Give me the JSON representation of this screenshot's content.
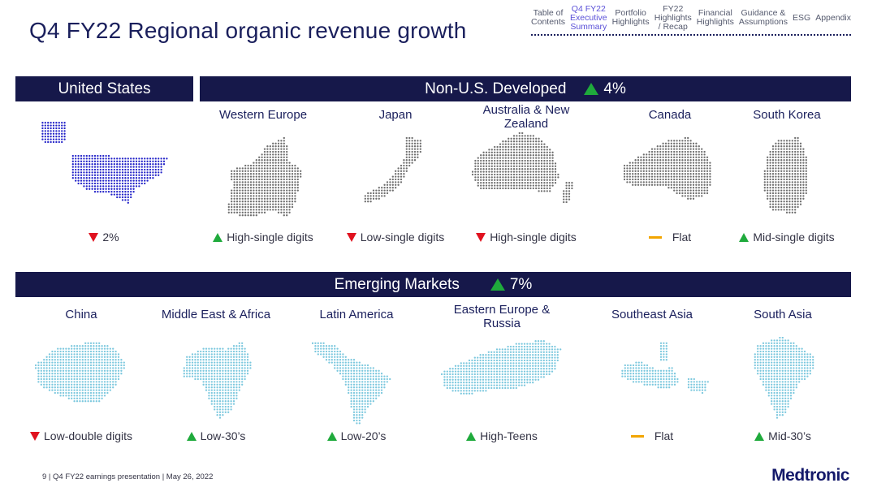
{
  "title": "Q4 FY22 Regional organic revenue growth",
  "nav": [
    {
      "label": "Table of\nContents",
      "active": false
    },
    {
      "label": "Q4 FY22\nExecutive\nSummary",
      "active": true
    },
    {
      "label": "Portfolio\nHighlights",
      "active": false
    },
    {
      "label": "FY22\nHighlights\n/ Recap",
      "active": false
    },
    {
      "label": "Financial\nHighlights",
      "active": false
    },
    {
      "label": "Guidance &\nAssumptions",
      "active": false
    },
    {
      "label": "ESG",
      "active": false
    },
    {
      "label": "Appendix",
      "active": false
    }
  ],
  "us": {
    "title": "United States",
    "status": "2%",
    "trend": "down"
  },
  "developed": {
    "title": "Non-U.S. Developed",
    "pct": "4%",
    "trend": "up",
    "regions": [
      {
        "name": "Western Europe",
        "status": "High-single digits",
        "trend": "up"
      },
      {
        "name": "Japan",
        "status": "Low-single digits",
        "trend": "down"
      },
      {
        "name": "Australia & New\nZealand",
        "status": "High-single digits",
        "trend": "down"
      },
      {
        "name": "Canada",
        "status": "Flat",
        "trend": "flat"
      },
      {
        "name": "South Korea",
        "status": "Mid-single digits",
        "trend": "up"
      }
    ]
  },
  "emerging": {
    "title": "Emerging Markets",
    "pct": "7%",
    "trend": "up",
    "regions": [
      {
        "name": "China",
        "status": "Low-double digits",
        "trend": "down"
      },
      {
        "name": "Middle East & Africa",
        "status": "Low-30’s",
        "trend": "up"
      },
      {
        "name": "Latin America",
        "status": "Low-20’s",
        "trend": "up"
      },
      {
        "name": "Eastern Europe &\nRussia",
        "status": "High-Teens",
        "trend": "up"
      },
      {
        "name": "Southeast Asia",
        "status": "Flat",
        "trend": "flat"
      },
      {
        "name": "South Asia",
        "status": "Mid-30’s",
        "trend": "up"
      }
    ]
  },
  "footer": "9   |  Q4 FY22 earnings presentation  |  May 26, 2022",
  "logo": "Medtronic",
  "colors": {
    "navy": "#16184a",
    "us_map": "#2323c8",
    "developed_map": "#6e6e6e",
    "emerging_map": "#7cc8de",
    "up": "#1faa3c",
    "down": "#e0121f",
    "flat": "#f2a500"
  }
}
